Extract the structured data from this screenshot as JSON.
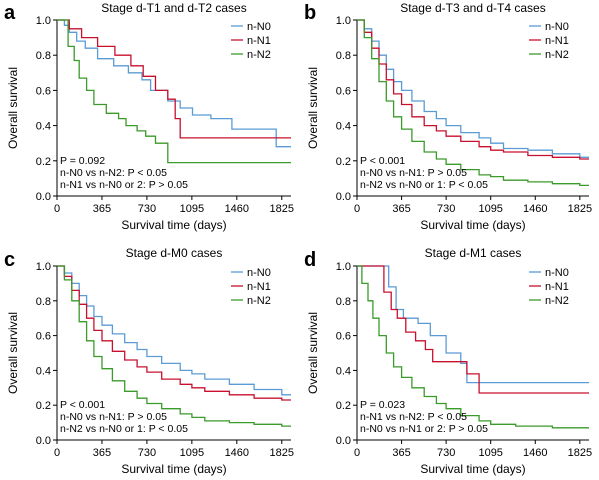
{
  "colors": {
    "n_N0": "#5b9bd5",
    "n_N1": "#c8102e",
    "n_N2": "#3a9a2a",
    "axis": "#000000"
  },
  "chart_data": [
    {
      "type": "line",
      "panel_letter": "a",
      "title": "Stage d-T1 and d-T2 cases",
      "xlabel": "Survival time (days)",
      "ylabel": "Overall survival",
      "xlim": [
        0,
        1900
      ],
      "ylim": [
        0,
        1.0
      ],
      "xticks": [
        0,
        365,
        730,
        1095,
        1460,
        1825
      ],
      "yticks": [
        0,
        0.2,
        0.4,
        0.6,
        0.8,
        1.0
      ],
      "ytick_labels": [
        "0.0",
        "0.2",
        "0.4",
        "0.6",
        "0.8",
        "1.0"
      ],
      "legend_position": "top-right",
      "annotations": [
        "P = 0.092",
        "n-N0 vs n-N2: P < 0.05",
        "n-N1 vs n-N0 or 2: P > 0.05"
      ],
      "series": [
        {
          "name": "n-N0",
          "x": [
            0,
            60,
            100,
            160,
            230,
            330,
            460,
            580,
            690,
            760,
            900,
            1000,
            1100,
            1250,
            1420,
            1780,
            1900
          ],
          "y": [
            1.0,
            0.97,
            0.93,
            0.88,
            0.84,
            0.78,
            0.74,
            0.7,
            0.66,
            0.6,
            0.54,
            0.5,
            0.46,
            0.44,
            0.38,
            0.28,
            0.28
          ]
        },
        {
          "name": "n-N1",
          "x": [
            0,
            100,
            200,
            330,
            470,
            600,
            700,
            800,
            900,
            960,
            1000,
            1900
          ],
          "y": [
            1.0,
            0.95,
            0.9,
            0.85,
            0.8,
            0.74,
            0.68,
            0.6,
            0.55,
            0.44,
            0.33,
            0.33
          ]
        },
        {
          "name": "n-N2",
          "x": [
            0,
            90,
            140,
            180,
            240,
            300,
            400,
            500,
            560,
            650,
            720,
            800,
            900,
            1400,
            1900
          ],
          "y": [
            1.0,
            0.85,
            0.77,
            0.67,
            0.6,
            0.52,
            0.47,
            0.44,
            0.4,
            0.37,
            0.34,
            0.3,
            0.19,
            0.19,
            0.19
          ]
        }
      ]
    },
    {
      "type": "line",
      "panel_letter": "b",
      "title": "Stage d-T3 and d-T4 cases",
      "xlabel": "Survival time (days)",
      "ylabel": "Overall survival",
      "xlim": [
        0,
        1900
      ],
      "ylim": [
        0,
        1.0
      ],
      "xticks": [
        0,
        365,
        730,
        1095,
        1460,
        1825
      ],
      "yticks": [
        0,
        0.2,
        0.4,
        0.6,
        0.8,
        1.0
      ],
      "ytick_labels": [
        "0.0",
        "0.2",
        "0.4",
        "0.6",
        "0.8",
        "1.0"
      ],
      "legend_position": "top-right",
      "annotations": [
        "P < 0.001",
        "n-N0 vs n-N1: P > 0.05",
        "n-N2 vs n-N0 or 1: P < 0.05"
      ],
      "series": [
        {
          "name": "n-N0",
          "x": [
            0,
            60,
            120,
            180,
            240,
            300,
            365,
            450,
            550,
            650,
            730,
            850,
            1000,
            1095,
            1200,
            1400,
            1600,
            1825,
            1900
          ],
          "y": [
            1.0,
            0.95,
            0.88,
            0.8,
            0.72,
            0.65,
            0.6,
            0.54,
            0.48,
            0.44,
            0.4,
            0.36,
            0.33,
            0.3,
            0.27,
            0.26,
            0.24,
            0.22,
            0.22
          ]
        },
        {
          "name": "n-N1",
          "x": [
            0,
            60,
            120,
            180,
            240,
            300,
            365,
            450,
            550,
            650,
            730,
            850,
            1000,
            1095,
            1200,
            1400,
            1600,
            1825,
            1900
          ],
          "y": [
            1.0,
            0.93,
            0.84,
            0.75,
            0.66,
            0.58,
            0.52,
            0.45,
            0.4,
            0.37,
            0.34,
            0.31,
            0.28,
            0.26,
            0.25,
            0.23,
            0.22,
            0.21,
            0.21
          ]
        },
        {
          "name": "n-N2",
          "x": [
            0,
            60,
            120,
            180,
            240,
            300,
            365,
            450,
            550,
            650,
            730,
            850,
            1000,
            1095,
            1200,
            1400,
            1600,
            1825,
            1900
          ],
          "y": [
            1.0,
            0.9,
            0.78,
            0.65,
            0.54,
            0.45,
            0.38,
            0.31,
            0.25,
            0.21,
            0.18,
            0.15,
            0.12,
            0.11,
            0.09,
            0.08,
            0.07,
            0.06,
            0.06
          ]
        }
      ]
    },
    {
      "type": "line",
      "panel_letter": "c",
      "title": "Stage d-M0 cases",
      "xlabel": "Survival time (days)",
      "ylabel": "Overall survival",
      "xlim": [
        0,
        1900
      ],
      "ylim": [
        0,
        1.0
      ],
      "xticks": [
        0,
        365,
        730,
        1095,
        1460,
        1825
      ],
      "yticks": [
        0,
        0.2,
        0.4,
        0.6,
        0.8,
        1.0
      ],
      "ytick_labels": [
        "0.0",
        "0.2",
        "0.4",
        "0.6",
        "0.8",
        "1.0"
      ],
      "legend_position": "top-right",
      "annotations": [
        "P < 0.001",
        "n-N0 vs n-N1: P > 0.05",
        "n-N2 vs n-N0 or 1: P < 0.05"
      ],
      "series": [
        {
          "name": "n-N0",
          "x": [
            0,
            60,
            120,
            180,
            240,
            300,
            365,
            450,
            550,
            650,
            730,
            850,
            1000,
            1095,
            1200,
            1400,
            1600,
            1825,
            1900
          ],
          "y": [
            1.0,
            0.96,
            0.9,
            0.83,
            0.77,
            0.71,
            0.66,
            0.61,
            0.56,
            0.52,
            0.48,
            0.44,
            0.4,
            0.38,
            0.35,
            0.32,
            0.29,
            0.26,
            0.26
          ]
        },
        {
          "name": "n-N1",
          "x": [
            0,
            60,
            120,
            180,
            240,
            300,
            365,
            450,
            550,
            650,
            730,
            850,
            1000,
            1095,
            1200,
            1400,
            1600,
            1825,
            1900
          ],
          "y": [
            1.0,
            0.94,
            0.86,
            0.78,
            0.7,
            0.63,
            0.57,
            0.51,
            0.46,
            0.42,
            0.39,
            0.35,
            0.32,
            0.3,
            0.28,
            0.26,
            0.24,
            0.23,
            0.23
          ]
        },
        {
          "name": "n-N2",
          "x": [
            0,
            60,
            120,
            180,
            240,
            300,
            365,
            450,
            550,
            650,
            730,
            850,
            1000,
            1095,
            1200,
            1400,
            1600,
            1825,
            1900
          ],
          "y": [
            1.0,
            0.92,
            0.8,
            0.68,
            0.57,
            0.48,
            0.41,
            0.34,
            0.28,
            0.24,
            0.21,
            0.18,
            0.15,
            0.13,
            0.11,
            0.1,
            0.09,
            0.08,
            0.08
          ]
        }
      ]
    },
    {
      "type": "line",
      "panel_letter": "d",
      "title": "Stage d-M1 cases",
      "xlabel": "Survival time (days)",
      "ylabel": "Overall survival",
      "xlim": [
        0,
        1900
      ],
      "ylim": [
        0,
        1.0
      ],
      "xticks": [
        0,
        365,
        730,
        1095,
        1460,
        1825
      ],
      "yticks": [
        0,
        0.2,
        0.4,
        0.6,
        0.8,
        1.0
      ],
      "ytick_labels": [
        "0.0",
        "0.2",
        "0.4",
        "0.6",
        "0.8",
        "1.0"
      ],
      "legend_position": "top-right",
      "annotations": [
        "P = 0.023",
        "n-N1 vs n-N2: P < 0.05",
        "n-N0 vs n-N1 or 2: P > 0.05"
      ],
      "series": [
        {
          "name": "n-N0",
          "x": [
            0,
            200,
            260,
            320,
            380,
            500,
            600,
            730,
            850,
            900,
            1900
          ],
          "y": [
            1.0,
            1.0,
            0.88,
            0.75,
            0.7,
            0.67,
            0.6,
            0.5,
            0.44,
            0.33,
            0.33
          ]
        },
        {
          "name": "n-N1",
          "x": [
            0,
            150,
            220,
            280,
            330,
            400,
            480,
            560,
            620,
            700,
            800,
            900,
            1000,
            1900
          ],
          "y": [
            1.0,
            1.0,
            0.85,
            0.75,
            0.7,
            0.62,
            0.57,
            0.52,
            0.45,
            0.45,
            0.45,
            0.38,
            0.27,
            0.27
          ]
        },
        {
          "name": "n-N2",
          "x": [
            0,
            40,
            90,
            130,
            180,
            240,
            300,
            365,
            450,
            550,
            650,
            730,
            850,
            1000,
            1095,
            1300,
            1600,
            1900
          ],
          "y": [
            1.0,
            0.9,
            0.8,
            0.7,
            0.6,
            0.5,
            0.42,
            0.36,
            0.3,
            0.25,
            0.21,
            0.18,
            0.14,
            0.11,
            0.09,
            0.08,
            0.07,
            0.07
          ]
        }
      ]
    }
  ]
}
